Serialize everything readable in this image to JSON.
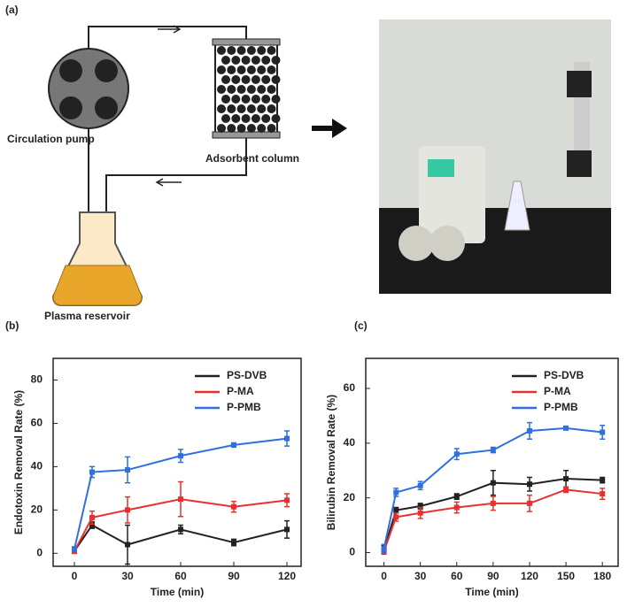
{
  "figure": {
    "panel": "(a)",
    "pump": "Circulation pump",
    "column": "Adsorbent column",
    "reservoir": "Plasma reservoir"
  },
  "chart_data": [
    {
      "panel": "(b)",
      "type": "line",
      "x": [
        0,
        10,
        30,
        60,
        90,
        120
      ],
      "xlim": [
        -12,
        128
      ],
      "xticks": [
        0,
        30,
        60,
        90,
        120
      ],
      "xlabel": "Time (min)",
      "ylabel": "Endotoxin Removal Rate (%)",
      "ylim": [
        -6,
        90
      ],
      "yticks": [
        0,
        20,
        40,
        60,
        80
      ],
      "legend": "upper right",
      "series": [
        {
          "name": "PS-DVB",
          "color": "#222222",
          "values": [
            1,
            13,
            4,
            11,
            5,
            11
          ],
          "errors": [
            1,
            1.5,
            9,
            2,
            1.5,
            4
          ]
        },
        {
          "name": "P-MA",
          "color": "#e8312f",
          "values": [
            1,
            16.5,
            20,
            25,
            21.5,
            24.5
          ],
          "errors": [
            1,
            3,
            6,
            8,
            2.5,
            3
          ]
        },
        {
          "name": "P-PMB",
          "color": "#2f6fe0",
          "values": [
            2,
            37.5,
            38.5,
            45,
            50,
            53
          ],
          "errors": [
            1,
            2.5,
            6,
            3,
            1,
            3.5
          ]
        }
      ]
    },
    {
      "panel": "(c)",
      "type": "line",
      "x": [
        0,
        10,
        30,
        60,
        90,
        120,
        150,
        180
      ],
      "xlim": [
        -15,
        193
      ],
      "xticks": [
        0,
        30,
        60,
        90,
        120,
        150,
        180
      ],
      "xlabel": "Time (min)",
      "ylabel": "Bilirubin Removal Rate (%)",
      "ylim": [
        -5,
        71
      ],
      "yticks": [
        0,
        20,
        40,
        60
      ],
      "legend": "upper right",
      "series": [
        {
          "name": "PS-DVB",
          "color": "#222222",
          "values": [
            1,
            15.5,
            17,
            20.5,
            25.5,
            25,
            27,
            26.5
          ],
          "errors": [
            1.5,
            1,
            1,
            1,
            4.5,
            2.5,
            3,
            1
          ]
        },
        {
          "name": "P-MA",
          "color": "#e8312f",
          "values": [
            0.5,
            13,
            14.5,
            16.5,
            18,
            18,
            23,
            21.5
          ],
          "errors": [
            1,
            1.5,
            2,
            2,
            2.5,
            3,
            1,
            2
          ]
        },
        {
          "name": "P-PMB",
          "color": "#2f6fe0",
          "values": [
            1.5,
            22,
            24.5,
            36,
            37.5,
            44.5,
            45.5,
            44
          ],
          "errors": [
            1.5,
            1.5,
            1.5,
            2,
            1,
            3,
            0.5,
            2.5
          ]
        }
      ]
    }
  ]
}
